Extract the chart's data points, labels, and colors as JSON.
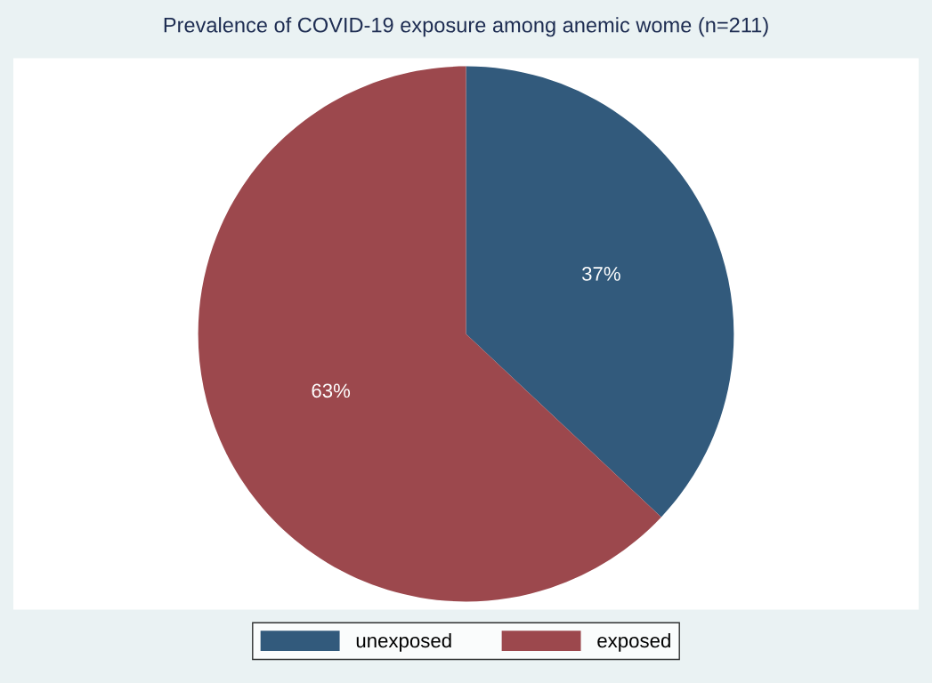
{
  "chart_data": {
    "type": "pie",
    "title": "Prevalence of COVID-19 exposure among anemic wome (n=211)",
    "categories": [
      "unexposed",
      "exposed"
    ],
    "values": [
      37,
      63
    ],
    "colors": [
      "#325a7c",
      "#9c484d"
    ],
    "value_labels": [
      "37%",
      "63%"
    ],
    "legend": "bottom"
  }
}
